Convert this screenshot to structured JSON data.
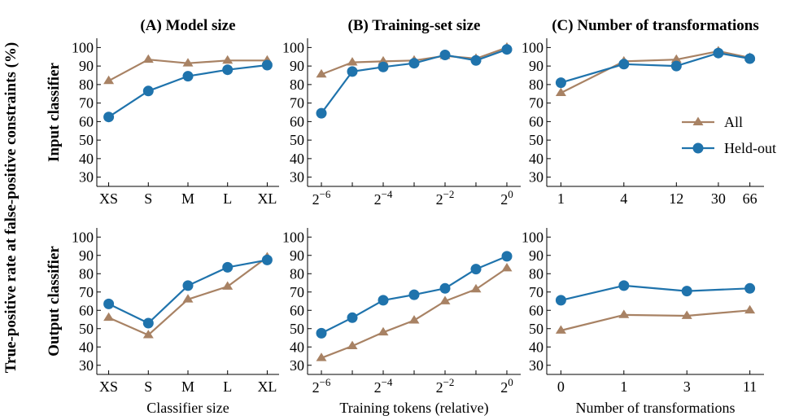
{
  "ylabel": "True-positive rate at false-positive constraints (%)",
  "row_labels": [
    "Input classifier",
    "Output classifier"
  ],
  "colors": {
    "all": "#a88264",
    "heldout": "#1f73ac"
  },
  "legend": [
    {
      "key": "all",
      "label": "All",
      "marker": "triangle"
    },
    {
      "key": "heldout",
      "label": "Held-out",
      "marker": "circle"
    }
  ],
  "chart_data": [
    {
      "type": "line",
      "panel": "A",
      "row": "input",
      "title": "(A) Model size",
      "xlabel": "",
      "categories": [
        "XS",
        "S",
        "M",
        "L",
        "XL"
      ],
      "ylim": [
        25,
        105
      ],
      "yticks": [
        30,
        40,
        50,
        60,
        70,
        80,
        90,
        100
      ],
      "series": [
        {
          "name": "All",
          "values": [
            82,
            93.5,
            91.5,
            93,
            93
          ]
        },
        {
          "name": "Held-out",
          "values": [
            62.5,
            76.5,
            84.5,
            88,
            90.5
          ]
        }
      ]
    },
    {
      "type": "line",
      "panel": "B",
      "row": "input",
      "title": "(B) Training-set size",
      "xlabel": "",
      "categories": [
        "2^-6",
        "2^-5",
        "2^-4",
        "2^-3",
        "2^-2",
        "2^-1",
        "2^0"
      ],
      "tick_labels": [
        {
          "base": "2",
          "exp": "−6",
          "index": 0
        },
        {
          "base": "2",
          "exp": "−4",
          "index": 2
        },
        {
          "base": "2",
          "exp": "−2",
          "index": 4
        },
        {
          "base": "2",
          "exp": "0",
          "index": 6
        }
      ],
      "ylim": [
        25,
        105
      ],
      "yticks": [
        30,
        40,
        50,
        60,
        70,
        80,
        90,
        100
      ],
      "series": [
        {
          "name": "All",
          "values": [
            85.5,
            92,
            92.5,
            93,
            95.5,
            94,
            100
          ]
        },
        {
          "name": "Held-out",
          "values": [
            64.5,
            87,
            89.5,
            91.5,
            96,
            93,
            99
          ]
        }
      ]
    },
    {
      "type": "line",
      "panel": "C",
      "row": "input",
      "title": "(C) Number of transformations",
      "xlabel": "",
      "categories": [
        "1",
        "4",
        "12",
        "30",
        "66"
      ],
      "x_positions": [
        0,
        1.2,
        2.2,
        3.0,
        3.6
      ],
      "ylim": [
        25,
        105
      ],
      "yticks": [
        30,
        40,
        50,
        60,
        70,
        80,
        90,
        100
      ],
      "series": [
        {
          "name": "All",
          "values": [
            75.5,
            92.5,
            93.5,
            98,
            94.5
          ]
        },
        {
          "name": "Held-out",
          "values": [
            81,
            91,
            90,
            97,
            94
          ]
        }
      ]
    },
    {
      "type": "line",
      "panel": "A",
      "row": "output",
      "title": "",
      "xlabel": "Classifier size",
      "categories": [
        "XS",
        "S",
        "M",
        "L",
        "XL"
      ],
      "ylim": [
        25,
        105
      ],
      "yticks": [
        30,
        40,
        50,
        60,
        70,
        80,
        90,
        100
      ],
      "series": [
        {
          "name": "All",
          "values": [
            56,
            46.5,
            66,
            73,
            89
          ]
        },
        {
          "name": "Held-out",
          "values": [
            63.5,
            53,
            73.5,
            83.5,
            87.5
          ]
        }
      ]
    },
    {
      "type": "line",
      "panel": "B",
      "row": "output",
      "title": "",
      "xlabel": "Training tokens (relative)",
      "categories": [
        "2^-6",
        "2^-5",
        "2^-4",
        "2^-3",
        "2^-2",
        "2^-1",
        "2^0"
      ],
      "tick_labels": [
        {
          "base": "2",
          "exp": "−6",
          "index": 0
        },
        {
          "base": "2",
          "exp": "−4",
          "index": 2
        },
        {
          "base": "2",
          "exp": "−2",
          "index": 4
        },
        {
          "base": "2",
          "exp": "0",
          "index": 6
        }
      ],
      "ylim": [
        25,
        105
      ],
      "yticks": [
        30,
        40,
        50,
        60,
        70,
        80,
        90,
        100
      ],
      "series": [
        {
          "name": "All",
          "values": [
            34,
            40.5,
            48,
            54.5,
            65,
            71.5,
            83
          ]
        },
        {
          "name": "Held-out",
          "values": [
            47.5,
            56,
            65.5,
            68.5,
            72,
            82.5,
            89.5
          ]
        }
      ]
    },
    {
      "type": "line",
      "panel": "C",
      "row": "output",
      "title": "",
      "xlabel": "Number of transformations",
      "categories": [
        "0",
        "1",
        "3",
        "11"
      ],
      "ylim": [
        25,
        105
      ],
      "yticks": [
        30,
        40,
        50,
        60,
        70,
        80,
        90,
        100
      ],
      "series": [
        {
          "name": "All",
          "values": [
            49,
            57.5,
            57,
            60
          ]
        },
        {
          "name": "Held-out",
          "values": [
            65.5,
            73.5,
            70.5,
            72
          ]
        }
      ]
    }
  ]
}
